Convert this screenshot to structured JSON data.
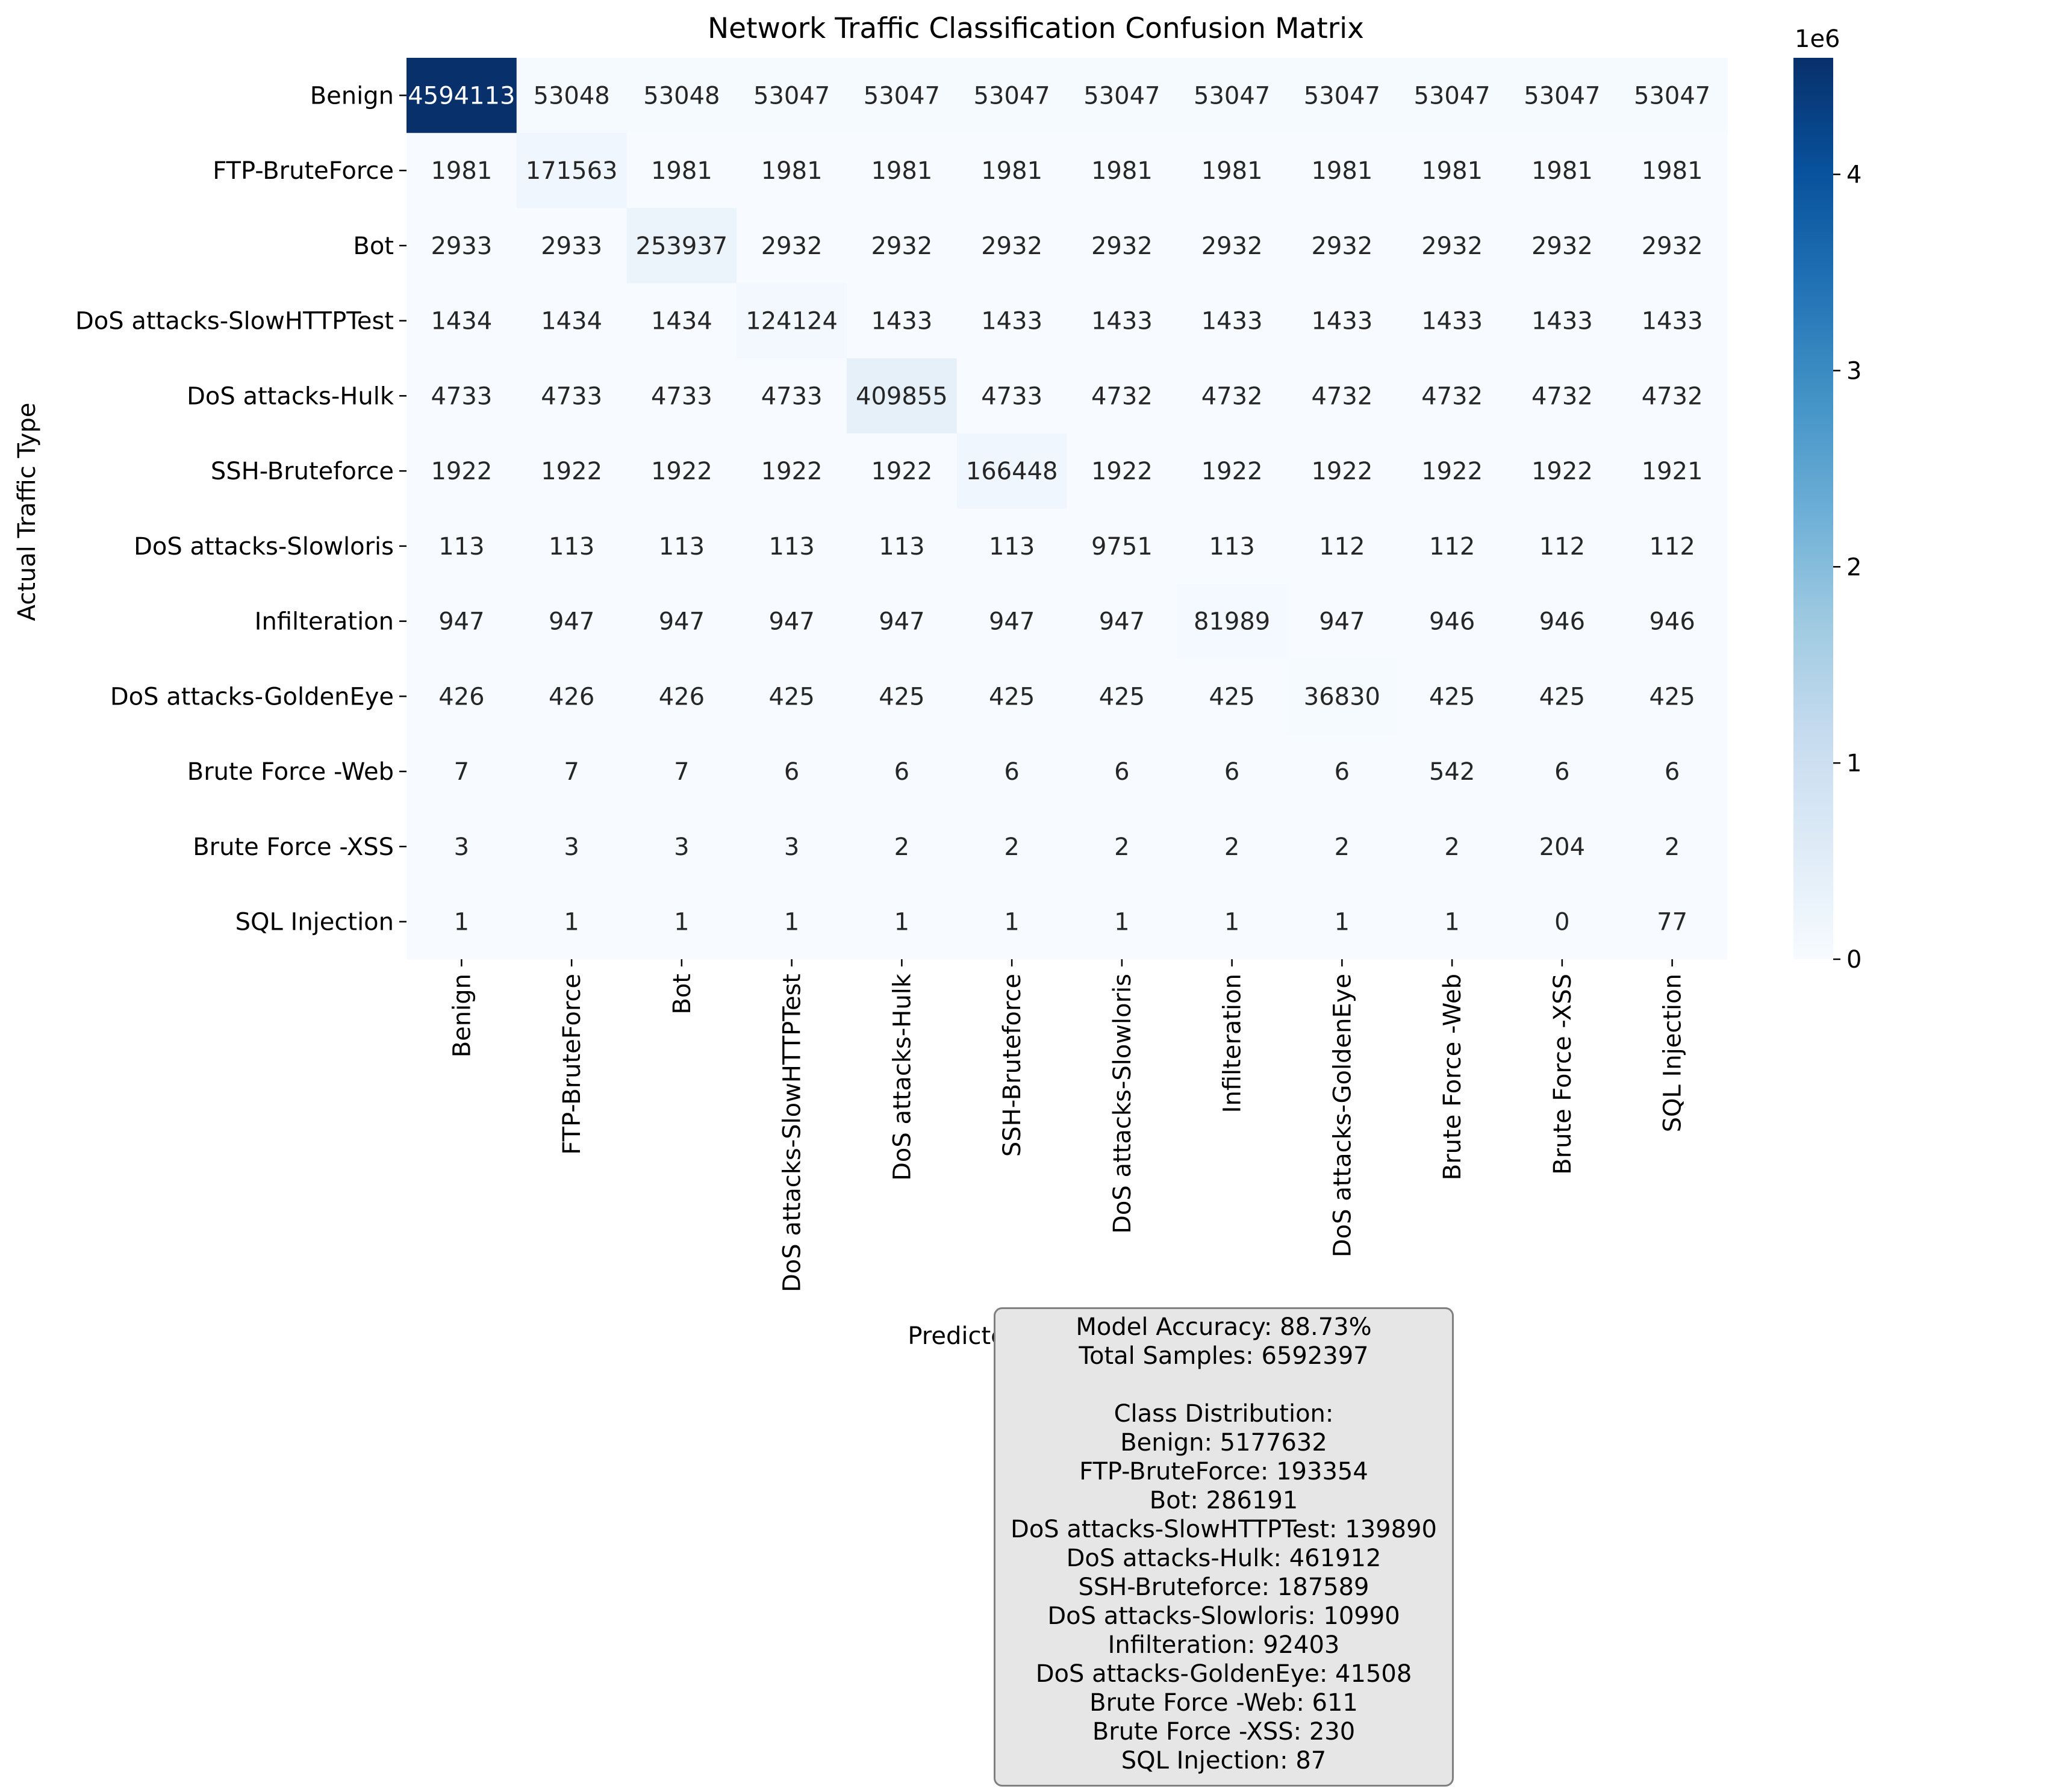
{
  "chart_data": {
    "type": "heatmap",
    "title": "Network Traffic Classification Confusion Matrix",
    "xlabel": "Predicted Traffic Type",
    "ylabel": "Actual Traffic Type",
    "colormap": "Blues",
    "colors": {
      "low": "#f7fbff",
      "high": "#08306b",
      "text_dark": "#262626",
      "text_light": "#ffffff"
    },
    "categories": [
      "Benign",
      "FTP-BruteForce",
      "Bot",
      "DoS attacks-SlowHTTPTest",
      "DoS attacks-Hulk",
      "SSH-Bruteforce",
      "DoS attacks-Slowloris",
      "Infilteration",
      "DoS attacks-GoldenEye",
      "Brute Force -Web",
      "Brute Force -XSS",
      "SQL Injection"
    ],
    "matrix": [
      [
        4594113,
        53048,
        53048,
        53047,
        53047,
        53047,
        53047,
        53047,
        53047,
        53047,
        53047,
        53047
      ],
      [
        1981,
        171563,
        1981,
        1981,
        1981,
        1981,
        1981,
        1981,
        1981,
        1981,
        1981,
        1981
      ],
      [
        2933,
        2933,
        253937,
        2932,
        2932,
        2932,
        2932,
        2932,
        2932,
        2932,
        2932,
        2932
      ],
      [
        1434,
        1434,
        1434,
        124124,
        1433,
        1433,
        1433,
        1433,
        1433,
        1433,
        1433,
        1433
      ],
      [
        4733,
        4733,
        4733,
        4733,
        409855,
        4733,
        4732,
        4732,
        4732,
        4732,
        4732,
        4732
      ],
      [
        1922,
        1922,
        1922,
        1922,
        1922,
        166448,
        1922,
        1922,
        1922,
        1922,
        1922,
        1921
      ],
      [
        113,
        113,
        113,
        113,
        113,
        113,
        9751,
        113,
        112,
        112,
        112,
        112
      ],
      [
        947,
        947,
        947,
        947,
        947,
        947,
        947,
        81989,
        947,
        946,
        946,
        946
      ],
      [
        426,
        426,
        426,
        425,
        425,
        425,
        425,
        425,
        36830,
        425,
        425,
        425
      ],
      [
        7,
        7,
        7,
        6,
        6,
        6,
        6,
        6,
        6,
        542,
        6,
        6
      ],
      [
        3,
        3,
        3,
        3,
        2,
        2,
        2,
        2,
        2,
        2,
        204,
        2
      ],
      [
        1,
        1,
        1,
        1,
        1,
        1,
        1,
        1,
        1,
        1,
        0,
        77
      ]
    ],
    "colorbar": {
      "min": 0,
      "max": 4594113,
      "ticks": [
        0,
        1,
        2,
        3,
        4
      ],
      "tick_multiplier": 1000000,
      "offset_label": "1e6"
    }
  },
  "info_box": {
    "accuracy": "Model Accuracy: 88.73%",
    "total": "Total Samples: 6592397",
    "distribution_heading": "Class Distribution:",
    "distribution": [
      "Benign: 5177632",
      "FTP-BruteForce: 193354",
      "Bot: 286191",
      "DoS attacks-SlowHTTPTest: 139890",
      "DoS attacks-Hulk: 461912",
      "SSH-Bruteforce: 187589",
      "DoS attacks-Slowloris: 10990",
      "Infilteration: 92403",
      "DoS attacks-GoldenEye: 41508",
      "Brute Force -Web: 611",
      "Brute Force -XSS: 230",
      "SQL Injection: 87"
    ]
  }
}
